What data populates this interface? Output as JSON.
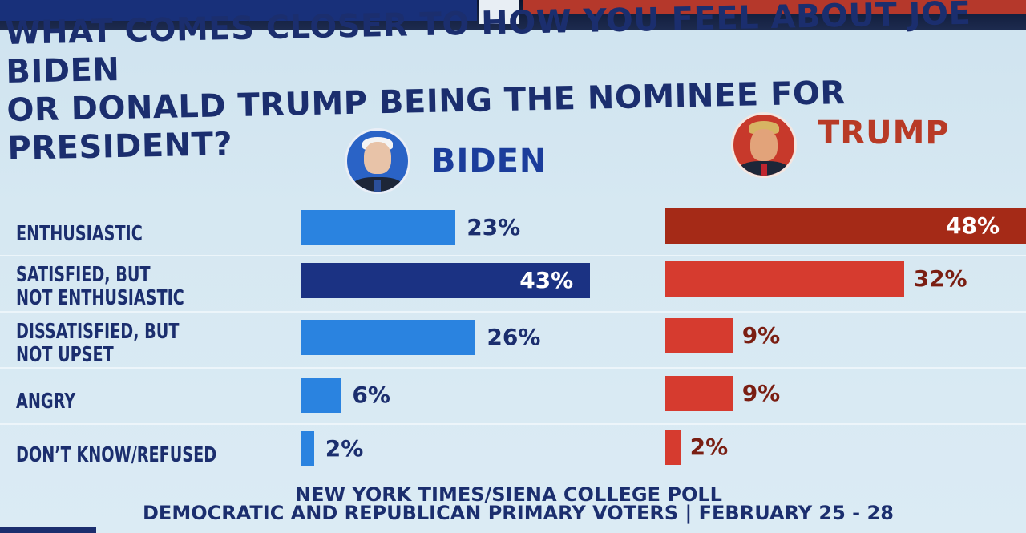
{
  "header": {
    "title_line1": "WHAT COMES CLOSER TO HOW YOU FEEL ABOUT JOE BIDEN",
    "title_line2": "OR DONALD TRUMP BEING THE NOMINEE FOR PRESIDENT?"
  },
  "candidates": {
    "biden": {
      "name": "BIDEN"
    },
    "trump": {
      "name": "TRUMP"
    }
  },
  "colors": {
    "biden_bar": "#2a83e0",
    "biden_highlight": "#1b3283",
    "trump_bar": "#d63b2f",
    "trump_highlight": "#a52a17"
  },
  "chart_data": {
    "type": "bar",
    "categories": [
      "ENTHUSIASTIC",
      "SATISFIED, BUT NOT ENTHUSIASTIC",
      "DISSATISFIED, BUT NOT UPSET",
      "ANGRY",
      "DON'T KNOW/REFUSED"
    ],
    "category_lines": [
      [
        "ENTHUSIASTIC"
      ],
      [
        "SATISFIED, BUT",
        "NOT ENTHUSIASTIC"
      ],
      [
        "DISSATISFIED, BUT",
        "NOT UPSET"
      ],
      [
        "ANGRY"
      ],
      [
        "DON’T KNOW/REFUSED"
      ]
    ],
    "series": [
      {
        "name": "BIDEN",
        "values": [
          23,
          43,
          26,
          6,
          2
        ],
        "labels": [
          "23%",
          "43%",
          "26%",
          "6%",
          "2%"
        ],
        "highlight_index": 1
      },
      {
        "name": "TRUMP",
        "values": [
          48,
          32,
          9,
          9,
          2
        ],
        "labels": [
          "48%",
          "32%",
          "9%",
          "9%",
          "2%"
        ],
        "highlight_index": 0
      }
    ],
    "value_unit": "%",
    "ylim": [
      0,
      48
    ]
  },
  "footer": {
    "source": "NEW YORK TIMES/SIENA COLLEGE POLL",
    "subtitle": "DEMOCRATIC AND REPUBLICAN PRIMARY VOTERS | FEBRUARY 25 - 28"
  }
}
